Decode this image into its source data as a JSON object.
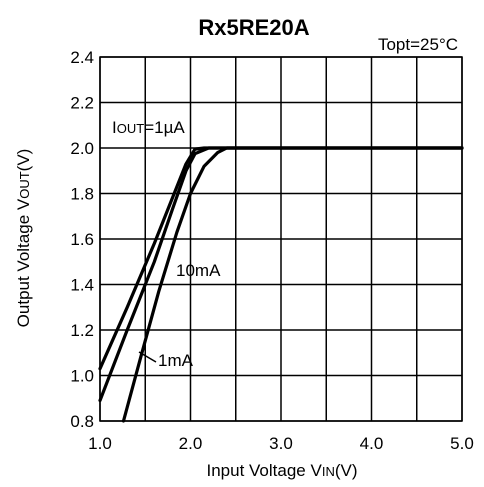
{
  "chart_data": {
    "type": "line",
    "title": "Rx5RE20A",
    "condition": "Topt=25°C",
    "xlabel": "Input Voltage VIN(V)",
    "ylabel": "Output Voltage VOUT(V)",
    "xlim": [
      1.0,
      5.0
    ],
    "ylim": [
      0.8,
      2.4
    ],
    "x_ticks": [
      "1.0",
      "2.0",
      "3.0",
      "4.0",
      "5.0"
    ],
    "y_ticks": [
      "0.8",
      "1.0",
      "1.2",
      "1.4",
      "1.6",
      "1.8",
      "2.0",
      "2.2",
      "2.4"
    ],
    "grid": true,
    "series": [
      {
        "name": "IOUT=1µA",
        "x": [
          1.0,
          1.3,
          1.6,
          1.8,
          1.95,
          2.05,
          2.15,
          5.0
        ],
        "y": [
          1.03,
          1.3,
          1.58,
          1.78,
          1.93,
          1.995,
          2.0,
          2.0
        ]
      },
      {
        "name": "1mA",
        "x": [
          1.0,
          1.3,
          1.6,
          1.8,
          1.95,
          2.05,
          2.2,
          5.0
        ],
        "y": [
          0.89,
          1.2,
          1.5,
          1.73,
          1.9,
          1.975,
          2.0,
          2.0
        ]
      },
      {
        "name": "10mA",
        "x": [
          1.26,
          1.45,
          1.65,
          1.85,
          2.0,
          2.15,
          2.3,
          2.4,
          5.0
        ],
        "y": [
          0.8,
          1.08,
          1.37,
          1.63,
          1.8,
          1.92,
          1.98,
          2.0,
          2.0
        ]
      }
    ],
    "annotations": [
      {
        "text_parts": [
          "I",
          "OUT",
          "=1µA"
        ],
        "series": "IOUT=1µA"
      },
      {
        "text": "10mA",
        "series": "10mA"
      },
      {
        "text": "1mA",
        "series": "1mA"
      }
    ]
  }
}
